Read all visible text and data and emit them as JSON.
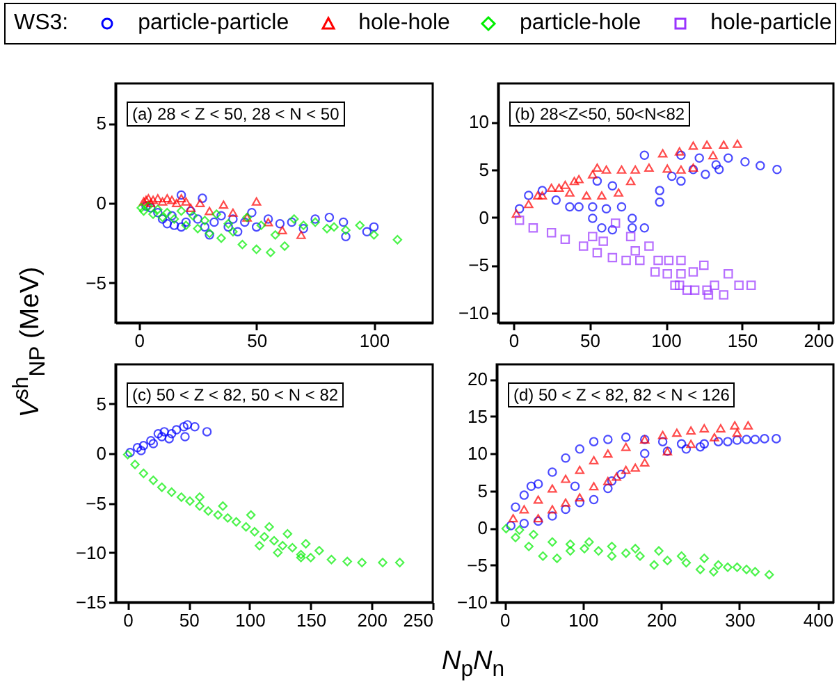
{
  "chart_data": [
    {
      "type": "scatter",
      "ylabel": "V$^{sh}$$_{NP}$ (MeV)",
      "legend": "top",
      "legend_title": "WS3:",
      "annotations": [
        "(a) 28 < Z < 50, 28 < N < 50"
      ],
      "xlim": [
        -10,
        125
      ],
      "ylim": [
        -7.5,
        7.5
      ],
      "xticks": [
        0,
        50,
        100
      ],
      "yticks": [
        -5,
        0,
        5
      ],
      "series": [
        {
          "name": "particle-particle",
          "color": "#0000ff",
          "marker": "circle",
          "x": [
            3,
            5,
            8,
            10,
            12,
            14,
            15,
            18,
            18,
            20,
            22,
            25,
            27,
            28,
            30,
            32,
            35,
            38,
            40,
            42,
            45,
            48,
            50,
            55,
            60,
            65,
            70,
            75,
            81,
            87,
            88,
            97,
            100
          ],
          "values": [
            -0.2,
            -0.3,
            -0.6,
            -1.0,
            -1.3,
            -0.8,
            -1.4,
            -1.5,
            0.5,
            -1.2,
            -0.5,
            -1.0,
            0.3,
            -1.5,
            -2.0,
            -1.2,
            -0.8,
            -1.5,
            -1.0,
            -1.8,
            -1.2,
            -0.6,
            -1.5,
            -1.0,
            -1.3,
            -1.2,
            -1.6,
            -1.0,
            -0.9,
            -1.2,
            -2.1,
            -1.8,
            -1.5
          ]
        },
        {
          "name": "hole-hole",
          "color": "#ff0000",
          "marker": "triangle",
          "x": [
            2,
            3,
            4,
            5,
            6,
            8,
            10,
            12,
            14,
            16,
            18,
            20,
            22,
            26,
            30,
            36,
            40,
            46,
            50,
            55,
            61,
            69
          ],
          "values": [
            0.1,
            0.2,
            0.3,
            0.0,
            0.2,
            0.3,
            0.1,
            0.3,
            0.2,
            0.0,
            0.3,
            0.1,
            -0.3,
            0.0,
            -0.5,
            -0.1,
            -0.6,
            -0.9,
            0.1,
            -1.2,
            -1.7,
            -2.0
          ]
        },
        {
          "name": "particle-hole",
          "color": "#00ee00",
          "marker": "diamond",
          "x": [
            1,
            2,
            4,
            6,
            8,
            10,
            12,
            15,
            18,
            20,
            23,
            25,
            28,
            30,
            33,
            35,
            38,
            40,
            44,
            46,
            50,
            52,
            56,
            58,
            62,
            66,
            70,
            75,
            80,
            83,
            88,
            94,
            100,
            110
          ],
          "values": [
            -0.3,
            -0.5,
            -0.2,
            -0.7,
            -0.4,
            -0.9,
            -0.6,
            -1.0,
            -0.5,
            -1.4,
            -0.8,
            -1.6,
            -1.1,
            -1.9,
            -0.7,
            -2.2,
            -1.3,
            -1.8,
            -2.6,
            -0.9,
            -2.9,
            -1.4,
            -3.1,
            -2.0,
            -2.7,
            -1.0,
            -1.4,
            -1.2,
            -1.6,
            -1.5,
            -1.7,
            -1.4,
            -2.0,
            -2.3
          ]
        }
      ]
    },
    {
      "type": "scatter",
      "annotations": [
        "(b) 28<Z<50, 50<N<82"
      ],
      "xlim": [
        -10,
        210
      ],
      "ylim": [
        -11,
        14
      ],
      "xticks": [
        0,
        50,
        100,
        150,
        200
      ],
      "yticks": [
        -10,
        -5,
        0,
        5,
        10
      ],
      "series": [
        {
          "color": "#0000ff",
          "marker": "circle",
          "x": [
            4,
            10,
            19,
            28,
            37,
            43,
            52,
            52,
            55,
            58,
            61,
            65,
            65,
            71,
            78,
            78,
            86,
            86,
            96,
            96,
            104,
            110,
            110,
            118,
            122,
            126,
            133,
            135,
            141,
            152,
            162,
            173
          ],
          "values": [
            0.9,
            2.3,
            2.8,
            1.8,
            1.1,
            1.1,
            1.1,
            -0.1,
            3.8,
            -1.1,
            0.9,
            3.3,
            -1.3,
            1.1,
            -0.1,
            -1.1,
            6.5,
            -1.1,
            2.8,
            1.6,
            4.3,
            3.8,
            6.5,
            5.0,
            6.2,
            4.5,
            5.5,
            5.0,
            6.2,
            5.8,
            5.4,
            5.0
          ]
        },
        {
          "color": "#ff0000",
          "marker": "triangle",
          "x": [
            2,
            10,
            16,
            19,
            25,
            30,
            34,
            37,
            40,
            43,
            48,
            52,
            55,
            58,
            61,
            69,
            71,
            77,
            80,
            89,
            98,
            101,
            109,
            110,
            118,
            118,
            127,
            131,
            138,
            147
          ],
          "values": [
            0.4,
            1.4,
            2.3,
            2.3,
            3.1,
            3.1,
            3.4,
            2.6,
            3.8,
            4.0,
            2.3,
            4.5,
            5.2,
            2.3,
            5.0,
            2.6,
            5.0,
            3.8,
            5.0,
            5.2,
            6.7,
            5.1,
            6.9,
            5.0,
            7.5,
            5.2,
            7.6,
            6.5,
            7.6,
            7.7
          ]
        },
        {
          "name": "hole-particle",
          "color": "#9933ff",
          "marker": "square",
          "x": [
            4,
            13,
            25,
            34,
            46,
            52,
            55,
            59,
            65,
            67,
            74,
            77,
            80,
            83,
            89,
            93,
            95,
            101,
            102,
            106,
            109,
            110,
            110,
            114,
            118,
            119,
            125,
            127,
            128,
            132,
            138,
            141,
            148,
            156
          ],
          "values": [
            -0.3,
            -1.1,
            -1.6,
            -2.3,
            -3.0,
            -2.0,
            -3.7,
            -2.5,
            -4.2,
            -0.6,
            -4.5,
            -2.0,
            -3.5,
            -4.5,
            -3.0,
            -5.7,
            -4.5,
            -5.9,
            -4.5,
            -7.1,
            -7.1,
            -4.5,
            -5.9,
            -7.6,
            -5.7,
            -7.6,
            -5.0,
            -7.6,
            -8.1,
            -7.1,
            -8.1,
            -5.9,
            -7.1,
            -7.1
          ]
        }
      ]
    },
    {
      "type": "scatter",
      "xlabel": "N$_{p}$N$_{n}$",
      "annotations": [
        "(c) 50 < Z < 82, 50 < N < 82"
      ],
      "xlim": [
        -10,
        250
      ],
      "ylim": [
        -15,
        9
      ],
      "xticks": [
        0,
        50,
        100,
        150,
        200,
        250
      ],
      "yticks": [
        -15,
        -10,
        -5,
        0,
        5
      ],
      "series": [
        {
          "color": "#0000ff",
          "marker": "circle",
          "x": [
            2,
            8,
            11,
            13,
            19,
            21,
            25,
            28,
            30,
            34,
            36,
            40,
            46,
            47,
            49,
            55,
            65
          ],
          "values": [
            0.1,
            0.6,
            0.3,
            0.8,
            1.3,
            1.0,
            2.0,
            1.7,
            2.2,
            1.5,
            2.0,
            2.4,
            2.7,
            1.7,
            2.9,
            2.7,
            2.2
          ]
        },
        {
          "color": "#00ee00",
          "marker": "diamond",
          "x": [
            0,
            6,
            13,
            21,
            28,
            36,
            44,
            51,
            59,
            59,
            66,
            74,
            78,
            82,
            89,
            97,
            101,
            104,
            108,
            112,
            116,
            120,
            123,
            127,
            131,
            135,
            142,
            142,
            146,
            150,
            157,
            167,
            180,
            192,
            209,
            223
          ],
          "values": [
            -0.1,
            -1.1,
            -2.0,
            -2.7,
            -3.4,
            -3.9,
            -4.4,
            -4.8,
            -5.3,
            -4.4,
            -5.8,
            -6.2,
            -5.3,
            -6.5,
            -6.9,
            -7.4,
            -6.2,
            -7.9,
            -9.3,
            -8.4,
            -7.4,
            -8.8,
            -10.0,
            -9.3,
            -8.1,
            -9.5,
            -10.2,
            -10.5,
            -9.1,
            -10.5,
            -9.8,
            -10.7,
            -10.9,
            -11.0,
            -11.0,
            -11.0
          ]
        }
      ]
    },
    {
      "type": "scatter",
      "annotations": [
        "(d) 50 < Z < 82, 82 < N < 126"
      ],
      "xlim": [
        -10,
        420
      ],
      "ylim": [
        -10,
        22
      ],
      "xticks": [
        0,
        100,
        200,
        300,
        400
      ],
      "yticks": [
        -10,
        -5,
        0,
        5,
        10,
        15,
        20
      ],
      "series": [
        {
          "color": "#0000ff",
          "marker": "circle",
          "x": [
            8,
            14,
            25,
            25,
            34,
            43,
            43,
            61,
            61,
            78,
            78,
            90,
            96,
            96,
            114,
            114,
            132,
            132,
            137,
            149,
            155,
            179,
            179,
            202,
            208,
            226,
            232,
            250,
            255,
            273,
            285,
            297,
            309,
            320,
            332,
            347
          ],
          "values": [
            0.3,
            2.8,
            0.6,
            4.4,
            5.6,
            0.9,
            5.9,
            1.6,
            7.5,
            2.5,
            9.4,
            5.6,
            3.4,
            10.6,
            3.8,
            11.6,
            5.3,
            11.9,
            6.3,
            7.2,
            12.2,
            10.0,
            11.9,
            11.6,
            10.3,
            11.3,
            10.6,
            10.9,
            11.3,
            11.6,
            11.6,
            11.8,
            11.9,
            11.9,
            12.0,
            12.0
          ]
        },
        {
          "color": "#ff0000",
          "marker": "triangle",
          "x": [
            11,
            25,
            43,
            43,
            61,
            61,
            78,
            78,
            96,
            96,
            114,
            114,
            132,
            132,
            143,
            155,
            155,
            167,
            179,
            179,
            202,
            208,
            220,
            238,
            238,
            255,
            268,
            276,
            294,
            297,
            311
          ],
          "values": [
            1.3,
            2.5,
            3.8,
            1.3,
            5.3,
            2.5,
            6.6,
            3.4,
            7.8,
            4.1,
            9.1,
            5.6,
            10.0,
            6.3,
            6.9,
            10.9,
            7.8,
            8.1,
            11.9,
            8.8,
            12.5,
            10.3,
            12.8,
            13.1,
            11.3,
            13.4,
            12.2,
            13.4,
            13.8,
            12.8,
            13.8
          ]
        },
        {
          "color": "#00ee00",
          "marker": "diamond",
          "x": [
            2,
            14,
            19,
            31,
            37,
            49,
            61,
            67,
            84,
            84,
            102,
            108,
            120,
            137,
            137,
            155,
            167,
            173,
            191,
            197,
            208,
            226,
            232,
            250,
            255,
            267,
            273,
            285,
            297,
            309,
            320,
            338
          ],
          "values": [
            -0.1,
            -1.3,
            -0.3,
            -2.5,
            -0.9,
            -3.8,
            -1.9,
            -4.1,
            -3.1,
            -2.2,
            -2.8,
            -1.9,
            -3.1,
            -3.8,
            -2.5,
            -3.4,
            -2.8,
            -3.8,
            -5.0,
            -3.1,
            -4.4,
            -3.8,
            -4.7,
            -5.6,
            -4.1,
            -5.9,
            -5.0,
            -5.3,
            -5.3,
            -5.6,
            -5.9,
            -6.3
          ]
        }
      ]
    }
  ]
}
